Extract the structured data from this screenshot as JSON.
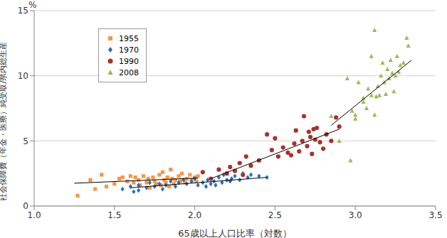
{
  "chart_data": {
    "type": "scatter",
    "y_label": "社会保障費（年金・医療）純受取/県内総生産",
    "y_unit": "%",
    "x_label": "65歳以上人口比率（対数）",
    "xlim": [
      1.0,
      3.5
    ],
    "xticks": [
      {
        "value": 1.0,
        "label": "1.0"
      },
      1.5,
      {
        "value": 2.0,
        "label": "2.0"
      },
      2.5,
      {
        "value": 3.0,
        "label": "3.0"
      },
      3.5
    ],
    "ylim": [
      0,
      15
    ],
    "yticks": [
      0,
      5,
      10,
      15
    ],
    "grid": "y",
    "legend": "top-left",
    "series": [
      {
        "name": "1955",
        "color": "#F79646",
        "marker": "square",
        "x": [
          1.27,
          1.35,
          1.38,
          1.42,
          1.45,
          1.5,
          1.53,
          1.55,
          1.58,
          1.6,
          1.62,
          1.63,
          1.65,
          1.66,
          1.68,
          1.7,
          1.71,
          1.72,
          1.74,
          1.75,
          1.76,
          1.78,
          1.79,
          1.8,
          1.81,
          1.82,
          1.83,
          1.84,
          1.85,
          1.86,
          1.87,
          1.88,
          1.9,
          1.91,
          1.92,
          1.94,
          1.95,
          1.97,
          1.98,
          2.0,
          2.01,
          2.02
        ],
        "values": [
          0.8,
          2.0,
          1.3,
          2.4,
          1.5,
          1.7,
          2.1,
          2.2,
          1.9,
          2.3,
          1.8,
          2.2,
          2.0,
          1.6,
          2.3,
          1.8,
          2.1,
          1.4,
          2.2,
          1.9,
          1.7,
          2.4,
          1.6,
          2.6,
          2.0,
          1.8,
          2.2,
          1.5,
          2.8,
          2.1,
          1.7,
          2.0,
          2.3,
          1.9,
          2.5,
          1.8,
          2.1,
          2.4,
          2.0,
          2.2,
          1.9,
          2.3
        ],
        "trend": {
          "x": [
            1.25,
            2.02
          ],
          "values": [
            1.75,
            2.15
          ]
        }
      },
      {
        "name": "1970",
        "color": "#2E6EB5",
        "marker": "diamond",
        "x": [
          1.55,
          1.6,
          1.62,
          1.65,
          1.65,
          1.7,
          1.72,
          1.75,
          1.78,
          1.8,
          1.82,
          1.85,
          1.88,
          1.9,
          1.93,
          1.95,
          1.98,
          2.0,
          2.02,
          2.05,
          2.07,
          2.08,
          2.1,
          2.12,
          2.13,
          2.15,
          2.17,
          2.18,
          2.2,
          2.22,
          2.23,
          2.25,
          2.28,
          2.3,
          2.33,
          2.35,
          2.4,
          2.45
        ],
        "values": [
          1.3,
          1.5,
          1.1,
          1.2,
          1.6,
          1.4,
          1.8,
          1.5,
          1.7,
          1.3,
          1.6,
          1.9,
          1.5,
          1.8,
          2.0,
          1.7,
          1.9,
          2.1,
          1.6,
          1.8,
          1.5,
          2.0,
          1.7,
          1.9,
          1.6,
          2.2,
          1.8,
          2.4,
          2.0,
          1.9,
          2.1,
          2.3,
          2.0,
          2.5,
          2.2,
          2.4,
          2.3,
          2.2
        ],
        "trend": {
          "x": [
            1.6,
            2.45
          ],
          "values": [
            1.4,
            2.2
          ]
        }
      },
      {
        "name": "1990",
        "color": "#A8322D",
        "marker": "circle",
        "x": [
          2.05,
          2.1,
          2.15,
          2.2,
          2.22,
          2.25,
          2.28,
          2.3,
          2.32,
          2.35,
          2.4,
          2.45,
          2.48,
          2.5,
          2.52,
          2.55,
          2.58,
          2.6,
          2.62,
          2.63,
          2.65,
          2.67,
          2.68,
          2.7,
          2.71,
          2.72,
          2.73,
          2.74,
          2.75,
          2.76,
          2.78,
          2.8,
          2.82,
          2.85,
          2.88,
          2.9
        ],
        "values": [
          2.6,
          2.1,
          2.8,
          2.5,
          3.0,
          2.7,
          3.3,
          2.4,
          3.8,
          3.1,
          3.5,
          5.5,
          4.3,
          5.2,
          3.8,
          4.5,
          4.1,
          3.9,
          4.8,
          5.8,
          4.2,
          5.0,
          6.9,
          4.6,
          5.7,
          5.3,
          4.0,
          5.9,
          5.1,
          6.0,
          4.9,
          4.4,
          5.5,
          5.0,
          6.8,
          6.1
        ],
        "trend": {
          "x": [
            2.1,
            2.9
          ],
          "values": [
            2.1,
            5.9
          ]
        }
      },
      {
        "name": "2008",
        "color": "#9BBB59",
        "marker": "triangle",
        "x": [
          2.85,
          2.9,
          2.95,
          2.97,
          3.0,
          3.0,
          3.02,
          3.05,
          3.07,
          3.08,
          3.1,
          3.1,
          3.12,
          3.13,
          3.14,
          3.15,
          3.16,
          3.17,
          3.18,
          3.19,
          3.2,
          3.21,
          3.22,
          3.23,
          3.24,
          3.25,
          3.26,
          3.27,
          3.28,
          3.3,
          3.32,
          3.33,
          3.12,
          3.05,
          2.98
        ],
        "values": [
          6.9,
          5.0,
          9.8,
          3.5,
          7.0,
          6.7,
          9.5,
          8.0,
          7.5,
          9.0,
          8.5,
          11.5,
          13.5,
          8.4,
          9.2,
          8.5,
          10.0,
          11.0,
          9.5,
          8.6,
          10.5,
          9.8,
          11.2,
          10.2,
          8.8,
          10.0,
          11.5,
          10.3,
          10.8,
          11.0,
          12.9,
          12.3,
          7.0,
          8.3,
          7.3
        ],
        "trend": {
          "x": [
            2.85,
            3.35
          ],
          "values": [
            6.2,
            11.2
          ]
        }
      }
    ]
  }
}
